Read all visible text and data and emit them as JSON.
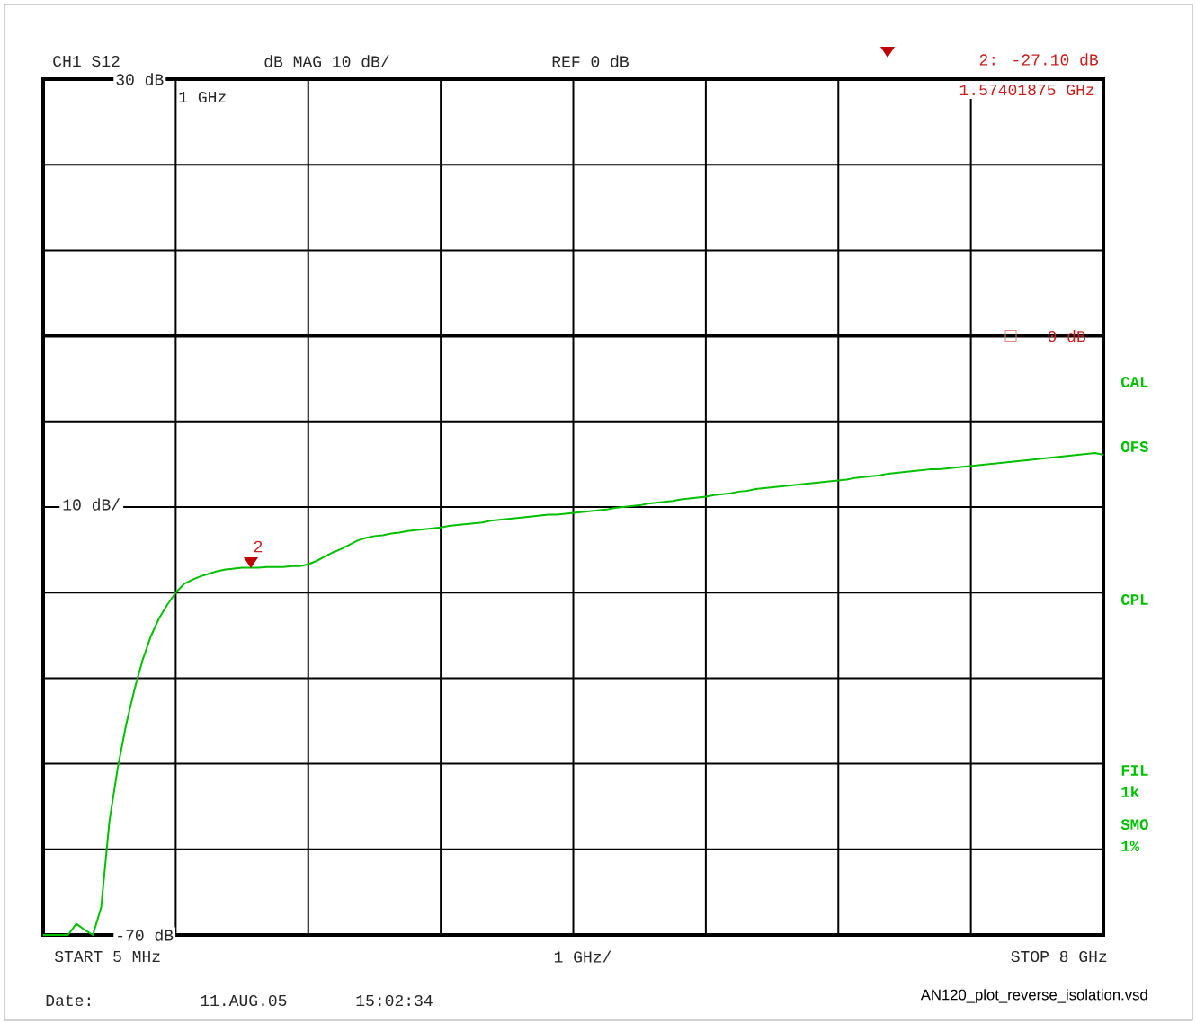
{
  "chart_data": {
    "type": "line",
    "color": "#00c000",
    "categories": [
      null,
      null,
      null,
      null,
      null,
      null,
      null,
      null,
      null,
      null,
      null,
      null,
      null,
      null,
      null,
      null,
      null,
      null,
      null,
      null,
      null,
      null,
      null,
      null,
      null,
      null,
      null,
      null,
      null,
      null,
      null,
      null,
      null,
      null,
      null,
      null,
      null,
      null,
      null,
      null,
      null,
      null,
      null,
      null,
      null,
      null,
      null,
      null,
      null,
      null,
      null,
      null,
      null,
      null,
      null,
      null,
      null,
      null,
      null,
      null,
      null,
      null,
      null,
      null,
      null,
      null,
      null,
      null,
      null,
      null,
      null,
      null,
      null,
      null,
      null,
      null,
      null,
      null,
      null,
      null,
      null,
      null,
      null,
      null,
      null,
      null,
      null,
      null,
      null,
      null,
      null,
      null,
      null,
      null,
      null,
      null,
      null,
      null,
      null,
      null,
      null,
      null,
      null,
      null,
      null,
      null,
      null,
      null,
      null,
      null,
      null,
      null,
      null,
      null,
      null,
      null,
      null,
      null,
      null,
      null,
      null,
      null,
      null,
      null,
      null,
      null,
      null,
      null,
      null
    ],
    "values": [
      -70,
      -70,
      -70,
      -70,
      -68.7,
      -69.4,
      -70,
      -66.8,
      -56.7,
      -50.5,
      -45.5,
      -41.4,
      -37.9,
      -35.1,
      -33.0,
      -31.4,
      -30.0,
      -29.0,
      -28.5,
      -28.1,
      -27.8,
      -27.5,
      -27.3,
      -27.2,
      -27.1,
      -27.1,
      -27.1,
      -27.0,
      -27.0,
      -27.0,
      -26.9,
      -26.9,
      -26.7,
      -26.3,
      -25.8,
      -25.3,
      -24.9,
      -24.4,
      -23.9,
      -23.6,
      -23.4,
      -23.3,
      -23.1,
      -23.0,
      -22.8,
      -22.7,
      -22.6,
      -22.5,
      -22.4,
      -22.2,
      -22.1,
      -22.0,
      -21.9,
      -21.8,
      -21.6,
      -21.5,
      -21.4,
      -21.3,
      -21.2,
      -21.1,
      -21.0,
      -20.9,
      -20.9,
      -20.8,
      -20.7,
      -20.6,
      -20.5,
      -20.4,
      -20.3,
      -20.1,
      -20.0,
      -19.9,
      -19.8,
      -19.6,
      -19.5,
      -19.4,
      -19.3,
      -19.1,
      -19.0,
      -18.9,
      -18.8,
      -18.6,
      -18.5,
      -18.4,
      -18.2,
      -18.1,
      -17.9,
      -17.8,
      -17.7,
      -17.6,
      -17.5,
      -17.4,
      -17.3,
      -17.2,
      -17.1,
      -17.0,
      -16.9,
      -16.8,
      -16.6,
      -16.5,
      -16.4,
      -16.3,
      -16.1,
      -16.0,
      -15.9,
      -15.8,
      -15.7,
      -15.6,
      -15.6,
      -15.5,
      -15.4,
      -15.3,
      -15.2,
      -15.1,
      -15.0,
      -14.9,
      -14.8,
      -14.7,
      -14.6,
      -14.5,
      -14.4,
      -14.3,
      -14.2,
      -14.1,
      -14.0,
      -13.9,
      -13.8,
      -13.7,
      -13.9
    ],
    "ylim": [
      -70,
      30
    ],
    "yticks": [
      {
        "value": -70,
        "label": "-70 dB"
      },
      {
        "value": -60,
        "label": null
      },
      {
        "value": -50,
        "label": null
      },
      {
        "value": -40,
        "label": null
      },
      {
        "value": -30,
        "label": null
      },
      {
        "value": -20,
        "label": null
      },
      {
        "value": -10,
        "label": null
      },
      {
        "value": 0,
        "label": null
      },
      {
        "value": 10,
        "label": null
      },
      {
        "value": 20,
        "label": null
      },
      {
        "value": 30,
        "label": "30 dB"
      }
    ],
    "grid": true,
    "ref_lines": [
      {
        "axis": "y",
        "value": 0,
        "label": "0 dB",
        "color": "#000000"
      }
    ],
    "annotations": [
      "CH1 S12",
      "dB MAG 10 dB/",
      "REF 0 dB",
      "2: -27.10 dB",
      "1.57401875 GHz",
      "1 GHz",
      "10 dB/",
      "START 5 MHz",
      "1 GHz/",
      "STOP 8 GHz",
      "Date:",
      "11.AUG.05",
      "15:02:34",
      "AN120_plot_reverse_isolation.vsd",
      "CAL",
      "OFS",
      "CPL",
      "FIL 1k",
      "SMO 1%",
      "2"
    ]
  }
}
